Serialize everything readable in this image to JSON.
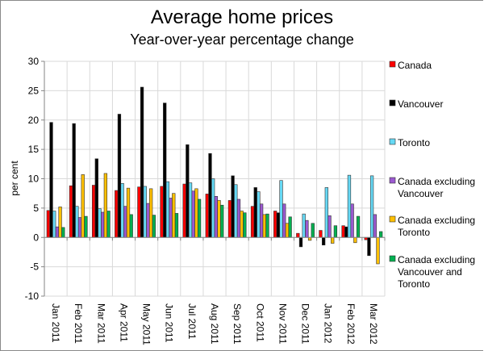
{
  "chart_data": {
    "type": "bar",
    "title": "Average home prices",
    "subtitle": "Year-over-year percentage change",
    "xlabel": "",
    "ylabel": "per cent",
    "ylim": [
      -10,
      30
    ],
    "yticks": [
      30,
      25,
      20,
      15,
      10,
      5,
      0,
      -5,
      -10
    ],
    "grid": true,
    "legend_position": "right",
    "categories": [
      "Jan 2011",
      "Feb 2011",
      "Mar 2011",
      "Apr 2011",
      "May 2011",
      "Jun 2011",
      "Jul 2011",
      "Aug 2011",
      "Sep 2011",
      "Oct 2011",
      "Nov 2011",
      "Dec 2011",
      "Jan 2012",
      "Feb 2012",
      "Mar 2012"
    ],
    "series": [
      {
        "name": "Canada",
        "legend_lines": [
          "Canada"
        ],
        "color": "#ff0000",
        "values": [
          4.6,
          8.8,
          8.9,
          8.0,
          8.6,
          8.7,
          9.1,
          7.4,
          6.3,
          5.3,
          4.5,
          0.7,
          1.2,
          2.0,
          -0.4
        ]
      },
      {
        "name": "Vancouver",
        "legend_lines": [
          "Vancouver"
        ],
        "color": "#000000",
        "values": [
          19.6,
          19.4,
          13.4,
          21.0,
          25.6,
          22.9,
          15.8,
          14.3,
          10.5,
          8.5,
          4.2,
          -1.6,
          -1.3,
          1.8,
          -3.1
        ]
      },
      {
        "name": "Toronto",
        "legend_lines": [
          "Toronto"
        ],
        "color": "#66d9f5",
        "values": [
          4.5,
          5.3,
          4.9,
          9.2,
          8.7,
          9.5,
          9.3,
          10.0,
          9.0,
          7.8,
          9.7,
          4.0,
          8.5,
          10.6,
          10.5
        ]
      },
      {
        "name": "Canada excluding Vancouver",
        "legend_lines": [
          "Canada excluding",
          "Vancouver"
        ],
        "color": "#9b59d0",
        "values": [
          1.8,
          3.4,
          4.3,
          5.3,
          5.8,
          6.7,
          7.9,
          7.0,
          6.5,
          5.7,
          5.7,
          2.9,
          3.7,
          5.7,
          3.9
        ]
      },
      {
        "name": "Canada excluding Toronto",
        "legend_lines": [
          "Canada excluding",
          "Toronto"
        ],
        "color": "#ffc000",
        "values": [
          5.2,
          10.7,
          10.9,
          8.4,
          8.3,
          7.5,
          8.3,
          6.3,
          4.5,
          3.9,
          2.4,
          -0.5,
          -1.0,
          -0.9,
          -4.5
        ]
      },
      {
        "name": "Canada excluding Vancouver and Toronto",
        "legend_lines": [
          "Canada excluding",
          "Vancouver and",
          "Toronto"
        ],
        "color": "#00b050",
        "values": [
          1.7,
          3.6,
          4.5,
          3.9,
          3.8,
          4.1,
          6.5,
          5.5,
          4.2,
          4.0,
          3.5,
          2.4,
          2.0,
          3.6,
          1.0
        ]
      }
    ]
  }
}
